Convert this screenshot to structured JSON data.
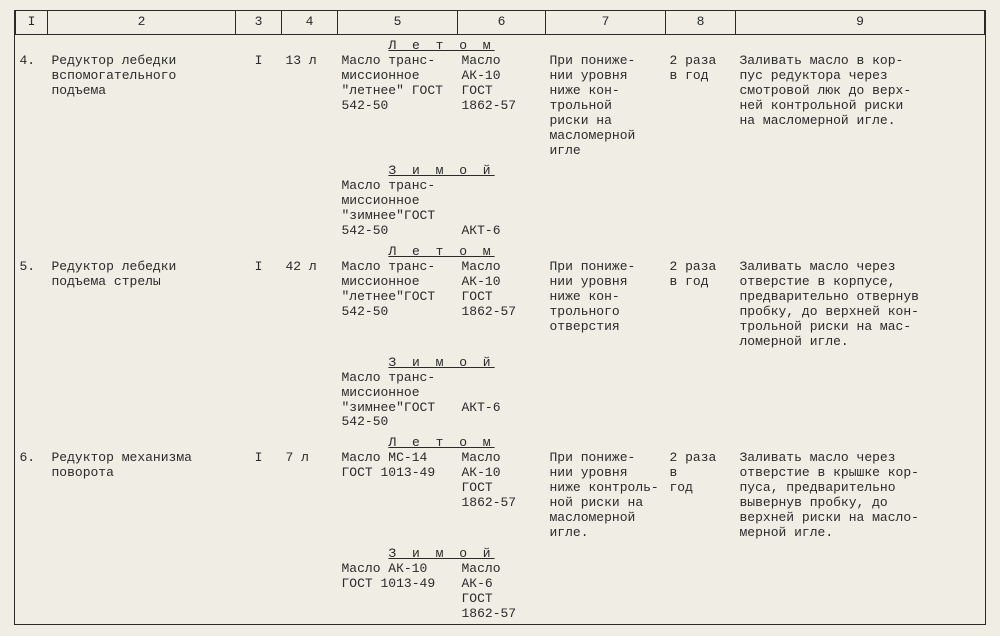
{
  "cols": {
    "c1": "I",
    "c2": "2",
    "c3": "3",
    "c4": "4",
    "c5": "5",
    "c6": "6",
    "c7": "7",
    "c8": "8",
    "c9": "9"
  },
  "season": {
    "summer": "Л е т о м",
    "winter": "З и м о й"
  },
  "r4": {
    "num": "4.",
    "name": "Редуктор лебедки вспомогательного подъема",
    "col3": "I",
    "col4": "13 л",
    "summer5": "Масло транс-\nмиссионное\n\"летнее\" ГОСТ\n542-50",
    "summer6": "Масло\nАК-10\nГОСТ\n1862-57",
    "winter5": "Масло транс-\nмиссионное\n\"зимнее\"ГОСТ\n542-50",
    "winter6": "\n\n\nАКТ-6",
    "col7": "При пониже-\nнии уровня\nниже кон-\nтрольной\nриски на\nмасломерной\nигле",
    "col8": "2 раза\n в год",
    "col9": "Заливать масло в кор-\nпус редуктора через\nсмотровой люк до верх-\nней контрольной риски\nна масломерной игле."
  },
  "r5": {
    "num": "5.",
    "name": "Редуктор лебедки подъема стрелы",
    "col3": "I",
    "col4": "42 л",
    "summer5": "Масло транс-\nмиссионное\n\"летнее\"ГОСТ\n542-50",
    "summer6": "Масло\nАК-10\nГОСТ\n1862-57",
    "winter5": "Масло транс-\nмиссионное\n\"зимнее\"ГОСТ\n542-50",
    "winter6": "\n\nАКТ-6",
    "col7": "При пониже-\nнии уровня\nниже кон-\nтрольного\nотверстия",
    "col8": "2 раза\nв год",
    "col9": "Заливать масло через\nотверстие в корпусе,\nпредварительно отвернув\nпробку, до верхней кон-\nтрольной риски на мас-\nломерной игле."
  },
  "r6": {
    "num": "6.",
    "name": "Редуктор механизма поворота",
    "col3": "I",
    "col4": "7 л",
    "summer5": "Масло МС-14\nГОСТ 1013-49",
    "summer6": "Масло\nАК-10\nГОСТ\n1862-57",
    "winter5": "Масло АК-10\nГОСТ 1013-49",
    "winter6": "Масло\nАК-6\nГОСТ\n1862-57",
    "col7": "При пониже-\nнии уровня\nниже контроль-\nной риски на\nмасломерной\nигле.",
    "col8": "2 раза\n   в\n год",
    "col9": "Заливать масло через\nотверстие в крышке кор-\nпуса, предварительно\nвывернув пробку, до\nверхней риски на масло-\nмерной игле."
  }
}
